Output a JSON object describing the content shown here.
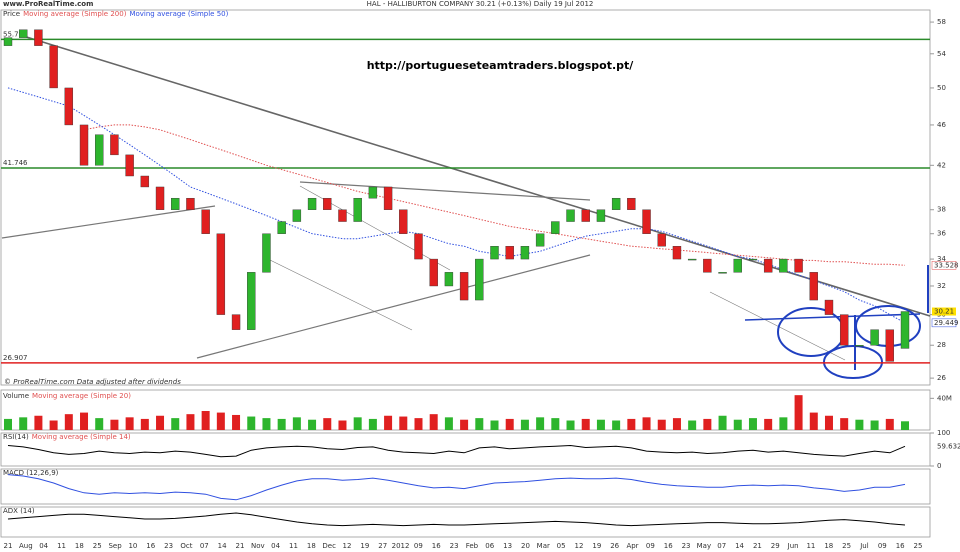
{
  "chart_data": {
    "type": "candlestick",
    "site": "www.ProRealTime.com",
    "title": "HAL - HALLIBURTON COMPANY   30.21 (+0.13%)   Daily 19 Jul 2012",
    "legend_label": "Price",
    "watermark": "http://portugueseteamtraders.blogspot.pt/",
    "note": "© ProRealTime.com  Data adjusted after dividends",
    "log_scale": true,
    "x_labels": [
      "21",
      "Aug",
      "04",
      "11",
      "18",
      "25",
      "Sep",
      "10",
      "16",
      "23",
      "Oct",
      "07",
      "14",
      "21",
      "Nov",
      "04",
      "11",
      "18",
      "Dec",
      "12",
      "19",
      "27",
      "2012",
      "09",
      "16",
      "23",
      "Feb",
      "06",
      "13",
      "20",
      "Mar",
      "05",
      "12",
      "19",
      "26",
      "Apr",
      "09",
      "16",
      "23",
      "May",
      "07",
      "14",
      "21",
      "29",
      "Jun",
      "11",
      "18",
      "25",
      "Jul",
      "09",
      "16",
      "25"
    ],
    "open": [
      55,
      56,
      57,
      55,
      50,
      46,
      42,
      45,
      43,
      41,
      40,
      38,
      39,
      38,
      36,
      30,
      29,
      33,
      36,
      37,
      38,
      39,
      38,
      37,
      39,
      40,
      38,
      36,
      34,
      32,
      33,
      31,
      34,
      35,
      34,
      35,
      36,
      37,
      38,
      37,
      38,
      39,
      38,
      36,
      35,
      34,
      34,
      33,
      33,
      34,
      34,
      33,
      34,
      33,
      31,
      30,
      28,
      28,
      29,
      27.8
    ],
    "close": [
      56,
      57,
      55,
      50,
      46,
      42,
      45,
      43,
      41,
      40,
      38,
      39,
      38,
      36,
      30,
      29,
      33,
      36,
      37,
      38,
      39,
      38,
      37,
      39,
      40,
      38,
      36,
      34,
      32,
      33,
      31,
      34,
      35,
      34,
      35,
      36,
      37,
      38,
      37,
      38,
      39,
      38,
      36,
      35,
      34,
      34,
      33,
      33,
      34,
      34,
      33,
      34,
      33,
      31,
      30,
      28,
      28,
      29,
      27,
      30.21
    ],
    "up_color": "#2db52d",
    "down_color": "#e02020",
    "ylim": [
      25.6,
      59.6
    ],
    "yticks": [
      26,
      28,
      30,
      32,
      34,
      36,
      38,
      42,
      46,
      50,
      54,
      58
    ],
    "series": [
      {
        "name": "Moving average (Simple 200)",
        "color": "#e05050",
        "values": [
          null,
          null,
          null,
          null,
          null,
          45.5,
          45.8,
          46,
          46,
          45.8,
          45.5,
          45,
          44.5,
          44,
          43.5,
          43,
          42.5,
          42,
          41.6,
          41.2,
          40.8,
          40.4,
          40,
          39.6,
          39.3,
          39,
          38.7,
          38.4,
          38.1,
          37.8,
          37.5,
          37.2,
          36.9,
          36.6,
          36.4,
          36.2,
          36,
          35.8,
          35.6,
          35.4,
          35.2,
          35,
          34.9,
          34.8,
          34.7,
          34.6,
          34.5,
          34.4,
          34.3,
          34.2,
          34.1,
          34,
          33.9,
          33.9,
          33.8,
          33.8,
          33.7,
          33.6,
          33.6,
          33.528
        ]
      },
      {
        "name": "Moving average (Simple 50)",
        "color": "#3050e0",
        "values": [
          50,
          49.5,
          49,
          48.5,
          48,
          47,
          46,
          45,
          44,
          43,
          42,
          41,
          40,
          39.5,
          39,
          38.5,
          38,
          37.5,
          37,
          36.5,
          36,
          35.8,
          35.6,
          35.6,
          35.8,
          36,
          36.2,
          36,
          35.6,
          35.2,
          35,
          34.6,
          34.4,
          34.2,
          34.4,
          34.6,
          35,
          35.4,
          35.8,
          36,
          36.2,
          36.4,
          36.4,
          36.2,
          35.8,
          35.4,
          35,
          34.6,
          34.2,
          34,
          33.6,
          33.2,
          32.8,
          32.4,
          32,
          31.6,
          31,
          30.6,
          30,
          29.449
        ]
      }
    ],
    "levels": [
      {
        "value": 55.79,
        "color": "#2a8a2a"
      },
      {
        "value": 41.746,
        "color": "#2a8a2a"
      },
      {
        "value": 26.907,
        "color": "#e02020"
      }
    ],
    "volume": {
      "title": "Volume",
      "ma_label": "Moving average (Simple 20)",
      "up_color": "#2db52d",
      "down_color": "#e02020",
      "values": [
        14,
        16,
        18,
        12,
        20,
        22,
        15,
        13,
        16,
        14,
        18,
        15,
        20,
        24,
        22,
        19,
        17,
        15,
        14,
        16,
        13,
        15,
        12,
        16,
        14,
        18,
        17,
        15,
        20,
        16,
        13,
        15,
        12,
        14,
        13,
        16,
        15,
        12,
        14,
        13,
        12,
        14,
        16,
        13,
        15,
        12,
        14,
        18,
        13,
        15,
        14,
        16,
        44,
        22,
        18,
        15,
        13,
        12,
        14,
        11
      ],
      "ylim": [
        0,
        48
      ],
      "yticks": [
        {
          "value": 40,
          "label": "40M"
        }
      ]
    },
    "rsi": {
      "title": "RSI(14)",
      "ma_label": "Moving average (Simple 14)",
      "color": "#000000",
      "values": [
        62,
        58,
        50,
        40,
        35,
        38,
        45,
        40,
        38,
        42,
        40,
        45,
        42,
        35,
        28,
        30,
        48,
        55,
        58,
        60,
        58,
        52,
        50,
        56,
        58,
        48,
        42,
        40,
        38,
        45,
        40,
        55,
        58,
        52,
        55,
        58,
        60,
        62,
        56,
        58,
        60,
        55,
        45,
        42,
        40,
        42,
        38,
        40,
        45,
        48,
        42,
        45,
        40,
        35,
        32,
        30,
        38,
        45,
        40,
        59.632
      ],
      "ylim": [
        0,
        100
      ],
      "yticks": [
        0,
        100
      ]
    },
    "macd": {
      "title": "MACD (12,26,9)",
      "color": "#3050e0",
      "values": [
        1.2,
        1,
        0.6,
        0,
        -0.8,
        -1.4,
        -1.6,
        -1.4,
        -1.5,
        -1.4,
        -1.5,
        -1.3,
        -1.4,
        -1.6,
        -2.2,
        -2.4,
        -1.8,
        -1,
        -0.3,
        0.3,
        0.6,
        0.6,
        0.4,
        0.5,
        0.7,
        0.4,
        0,
        -0.4,
        -0.7,
        -0.6,
        -0.8,
        -0.4,
        0,
        0.1,
        0.2,
        0.4,
        0.6,
        0.7,
        0.6,
        0.6,
        0.7,
        0.5,
        0.1,
        -0.2,
        -0.4,
        -0.5,
        -0.6,
        -0.6,
        -0.4,
        -0.3,
        -0.4,
        -0.3,
        -0.4,
        -0.7,
        -0.9,
        -1.2,
        -1,
        -0.6,
        -0.6,
        -0.2
      ],
      "ylim": [
        -3,
        2
      ]
    },
    "adx": {
      "title": "ADX (14)",
      "color": "#000000",
      "values": [
        30,
        32,
        34,
        36,
        38,
        38,
        36,
        34,
        32,
        30,
        30,
        31,
        33,
        35,
        38,
        40,
        37,
        33,
        29,
        25,
        22,
        20,
        19,
        20,
        21,
        20,
        19,
        20,
        21,
        20,
        20,
        21,
        22,
        23,
        24,
        25,
        26,
        25,
        24,
        22,
        20,
        19,
        20,
        21,
        22,
        23,
        24,
        24,
        23,
        22,
        22,
        23,
        24,
        26,
        28,
        29,
        27,
        25,
        22,
        20
      ],
      "ylim": [
        0,
        50
      ]
    }
  }
}
